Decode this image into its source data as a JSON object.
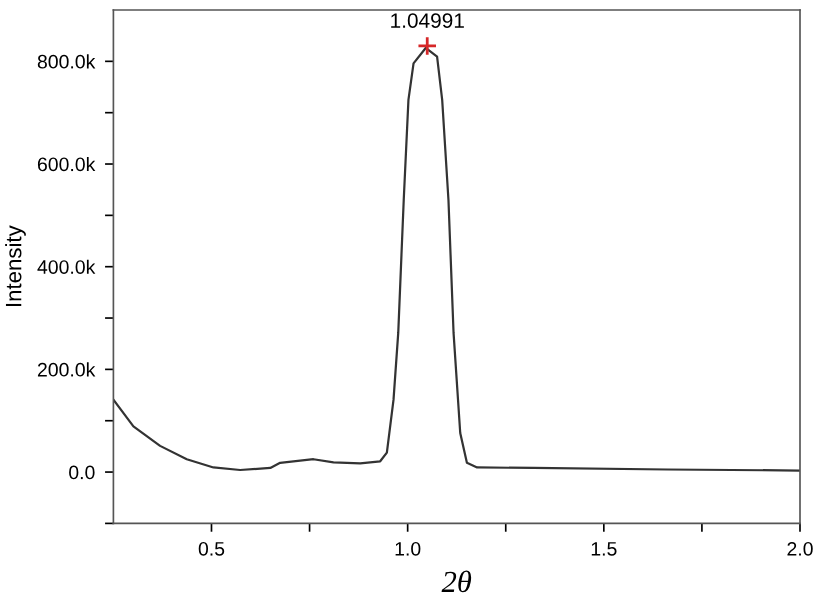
{
  "chart_data": {
    "type": "line",
    "xlabel": "2θ",
    "ylabel": "Intensity",
    "xlim": [
      0.25,
      2.0
    ],
    "ylim": [
      -100000,
      900000
    ],
    "xticks": [
      {
        "value": 0.5,
        "label": "0.5"
      },
      {
        "value": 0.75,
        "label": null
      },
      {
        "value": 1.0,
        "label": "1.0"
      },
      {
        "value": 1.25,
        "label": null
      },
      {
        "value": 1.5,
        "label": "1.5"
      },
      {
        "value": 1.75,
        "label": null
      },
      {
        "value": 2.0,
        "label": "2.0"
      }
    ],
    "yticks": [
      {
        "value": -100000,
        "label": null
      },
      {
        "value": 0,
        "label": "0.0"
      },
      {
        "value": 100000,
        "label": null
      },
      {
        "value": 200000,
        "label": "200.0k"
      },
      {
        "value": 300000,
        "label": null
      },
      {
        "value": 400000,
        "label": "400.0k"
      },
      {
        "value": 500000,
        "label": null
      },
      {
        "value": 600000,
        "label": "600.0k"
      },
      {
        "value": 700000,
        "label": null
      },
      {
        "value": 800000,
        "label": "800.0k"
      }
    ],
    "grid": false,
    "legend": false,
    "series": [
      {
        "color": "#333333",
        "marker": "none",
        "line_style": "solid",
        "x": [
          0.25,
          0.301,
          0.369,
          0.437,
          0.505,
          0.573,
          0.65,
          0.675,
          0.76,
          0.811,
          0.879,
          0.93,
          0.947,
          0.964,
          0.976,
          0.99,
          1.002,
          1.015,
          1.046,
          1.075,
          1.088,
          1.104,
          1.117,
          1.134,
          1.151,
          1.177,
          1.321,
          1.662,
          2.0
        ],
        "values": [
          141000,
          89000,
          51000,
          25000,
          9000,
          4000,
          8000,
          18000,
          25000,
          19000,
          17000,
          21000,
          38000,
          141000,
          271000,
          530000,
          725000,
          796000,
          826000,
          809000,
          725000,
          530000,
          271000,
          76000,
          18000,
          9000,
          8000,
          5000,
          3000
        ]
      },
      {
        "type": "scatter",
        "color": "#d62728",
        "marker": "cross",
        "x": [
          1.04991
        ],
        "values": [
          830000
        ]
      }
    ],
    "annotations": [
      {
        "text": "1.04991",
        "x": 1.04991,
        "y": 830000
      }
    ]
  }
}
